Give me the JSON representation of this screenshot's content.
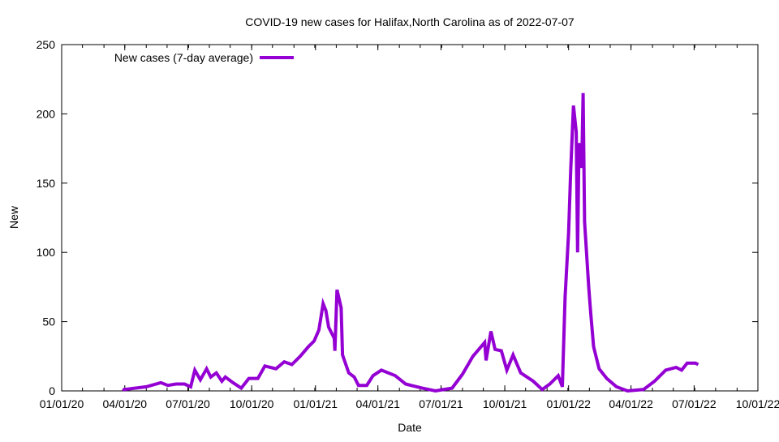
{
  "chart_data": {
    "type": "line",
    "title": "COVID-19 new cases for Halifax,North Carolina as of 2022-07-07",
    "xlabel": "Date",
    "ylabel": "New",
    "x_units": "days since 2020-01-01",
    "xlim": [
      0,
      1004
    ],
    "ylim": [
      0,
      250
    ],
    "yticks": [
      0,
      50,
      100,
      150,
      200,
      250
    ],
    "xticks": [
      {
        "day": 0,
        "label": "01/01/20"
      },
      {
        "day": 91,
        "label": "04/01/20"
      },
      {
        "day": 182,
        "label": "07/01/20"
      },
      {
        "day": 274,
        "label": "10/01/20"
      },
      {
        "day": 366,
        "label": "01/01/21"
      },
      {
        "day": 456,
        "label": "04/01/21"
      },
      {
        "day": 547,
        "label": "07/01/21"
      },
      {
        "day": 639,
        "label": "10/01/21"
      },
      {
        "day": 731,
        "label": "01/01/22"
      },
      {
        "day": 821,
        "label": "04/01/22"
      },
      {
        "day": 912,
        "label": "07/01/22"
      },
      {
        "day": 1004,
        "label": "10/01/22"
      }
    ],
    "grid": false,
    "legend_position": "top-left",
    "series": [
      {
        "name": "New cases (7-day average)",
        "color": "#9400d3",
        "points": [
          [
            89,
            0
          ],
          [
            90,
            1
          ],
          [
            122,
            3
          ],
          [
            143,
            6
          ],
          [
            153,
            4
          ],
          [
            165,
            5
          ],
          [
            177,
            5
          ],
          [
            186,
            3
          ],
          [
            192,
            15
          ],
          [
            200,
            8
          ],
          [
            209,
            16
          ],
          [
            215,
            10
          ],
          [
            223,
            13
          ],
          [
            231,
            7
          ],
          [
            236,
            10
          ],
          [
            247,
            6
          ],
          [
            259,
            2
          ],
          [
            270,
            9
          ],
          [
            283,
            9
          ],
          [
            293,
            18
          ],
          [
            309,
            16
          ],
          [
            321,
            21
          ],
          [
            332,
            19
          ],
          [
            344,
            25
          ],
          [
            356,
            32
          ],
          [
            364,
            36
          ],
          [
            371,
            44
          ],
          [
            377,
            63
          ],
          [
            381,
            58
          ],
          [
            385,
            46
          ],
          [
            393,
            38
          ],
          [
            394,
            29
          ],
          [
            397,
            73
          ],
          [
            403,
            60
          ],
          [
            405,
            26
          ],
          [
            414,
            13
          ],
          [
            422,
            10
          ],
          [
            428,
            4
          ],
          [
            440,
            4
          ],
          [
            449,
            11
          ],
          [
            461,
            15
          ],
          [
            481,
            11
          ],
          [
            496,
            5
          ],
          [
            520,
            2
          ],
          [
            539,
            0
          ],
          [
            563,
            2
          ],
          [
            578,
            12
          ],
          [
            593,
            25
          ],
          [
            610,
            35
          ],
          [
            612,
            22
          ],
          [
            619,
            43
          ],
          [
            625,
            30
          ],
          [
            634,
            29
          ],
          [
            642,
            15
          ],
          [
            651,
            26
          ],
          [
            662,
            13
          ],
          [
            680,
            7
          ],
          [
            693,
            1
          ],
          [
            704,
            5
          ],
          [
            716,
            11
          ],
          [
            722,
            3
          ],
          [
            726,
            68
          ],
          [
            731,
            114
          ],
          [
            734,
            159
          ],
          [
            738,
            206
          ],
          [
            742,
            187
          ],
          [
            744,
            100
          ],
          [
            746,
            179
          ],
          [
            750,
            161
          ],
          [
            752,
            215
          ],
          [
            754,
            122
          ],
          [
            757,
            99
          ],
          [
            760,
            75
          ],
          [
            763,
            56
          ],
          [
            767,
            32
          ],
          [
            775,
            16
          ],
          [
            786,
            9
          ],
          [
            800,
            3
          ],
          [
            816,
            0
          ],
          [
            839,
            1
          ],
          [
            855,
            7
          ],
          [
            871,
            15
          ],
          [
            886,
            17
          ],
          [
            894,
            15
          ],
          [
            902,
            20
          ],
          [
            914,
            20
          ],
          [
            918,
            19
          ]
        ]
      }
    ]
  }
}
